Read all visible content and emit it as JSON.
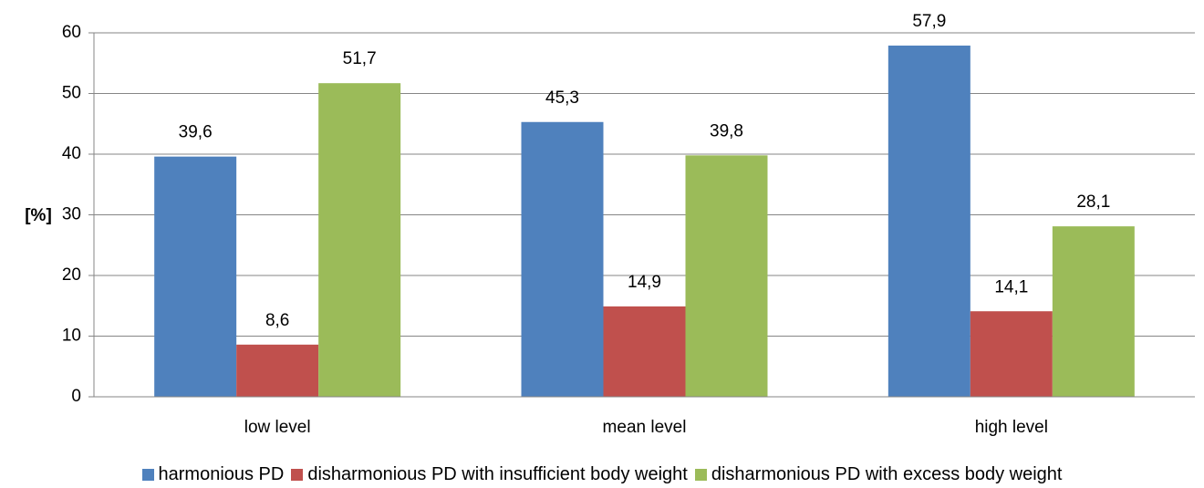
{
  "chart_data": {
    "type": "bar",
    "y_label": "[%]",
    "categories": [
      "low level",
      "mean level",
      "high level"
    ],
    "series": [
      {
        "name": "harmonious PD",
        "color": "#4f81bd",
        "values": [
          39.6,
          45.3,
          57.9
        ],
        "value_labels": [
          "39,6",
          "45,3",
          "57,9"
        ]
      },
      {
        "name": "disharmonious PD with insufficient body weight",
        "color": "#c0504d",
        "values": [
          8.6,
          14.9,
          14.1
        ],
        "value_labels": [
          "8,6",
          "14,9",
          "14,1"
        ]
      },
      {
        "name": "disharmonious PD with excess body weight",
        "color": "#9bbb59",
        "values": [
          51.7,
          39.8,
          28.1
        ],
        "value_labels": [
          "51,7",
          "39,8",
          "28,1"
        ]
      }
    ],
    "ylim": [
      0,
      60
    ],
    "yticks": [
      0,
      10,
      20,
      30,
      40,
      50,
      60
    ],
    "grid": true,
    "legend": "bottom"
  }
}
